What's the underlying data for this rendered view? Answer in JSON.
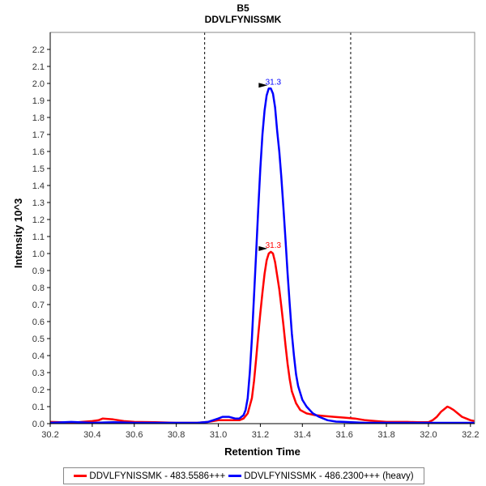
{
  "chart_data": {
    "type": "line",
    "title": "B5",
    "subtitle": "DDVLFYNISSMK",
    "xlabel": "Retention Time",
    "ylabel": "Intensity 10^3",
    "xlim": [
      30.2,
      32.22
    ],
    "ylim": [
      0,
      2.3
    ],
    "x_ticks": [
      "30.2",
      "30.4",
      "30.6",
      "30.8",
      "31.0",
      "31.2",
      "31.4",
      "31.6",
      "31.8",
      "32.0",
      "32.2"
    ],
    "y_ticks": [
      "0.0",
      "0.1",
      "0.2",
      "0.3",
      "0.4",
      "0.5",
      "0.6",
      "0.7",
      "0.8",
      "0.9",
      "1.0",
      "1.1",
      "1.2",
      "1.3",
      "1.4",
      "1.5",
      "1.6",
      "1.7",
      "1.8",
      "1.9",
      "2.0",
      "2.1",
      "2.2"
    ],
    "grid": false,
    "legend_position": "bottom",
    "boundaries": [
      30.935,
      31.63
    ],
    "series": [
      {
        "name": "DDVLFYNISSMK - 483.5586+++",
        "color": "#ff0000",
        "peak_label": "31.3",
        "peak": [
          31.246,
          1.01
        ],
        "points": [
          [
            30.2,
            0.01
          ],
          [
            30.25,
            0.008
          ],
          [
            30.3,
            0.005
          ],
          [
            30.35,
            0.01
          ],
          [
            30.4,
            0.015
          ],
          [
            30.43,
            0.02
          ],
          [
            30.45,
            0.03
          ],
          [
            30.5,
            0.025
          ],
          [
            30.55,
            0.015
          ],
          [
            30.6,
            0.01
          ],
          [
            30.7,
            0.008
          ],
          [
            30.8,
            0.005
          ],
          [
            30.9,
            0.005
          ],
          [
            30.95,
            0.01
          ],
          [
            31.0,
            0.02
          ],
          [
            31.05,
            0.02
          ],
          [
            31.1,
            0.02
          ],
          [
            31.12,
            0.03
          ],
          [
            31.14,
            0.06
          ],
          [
            31.16,
            0.15
          ],
          [
            31.17,
            0.25
          ],
          [
            31.18,
            0.38
          ],
          [
            31.19,
            0.52
          ],
          [
            31.2,
            0.65
          ],
          [
            31.21,
            0.77
          ],
          [
            31.22,
            0.88
          ],
          [
            31.23,
            0.96
          ],
          [
            31.24,
            1.0
          ],
          [
            31.25,
            1.01
          ],
          [
            31.26,
            1.0
          ],
          [
            31.27,
            0.95
          ],
          [
            31.28,
            0.87
          ],
          [
            31.29,
            0.79
          ],
          [
            31.3,
            0.69
          ],
          [
            31.31,
            0.58
          ],
          [
            31.32,
            0.46
          ],
          [
            31.33,
            0.35
          ],
          [
            31.34,
            0.26
          ],
          [
            31.35,
            0.19
          ],
          [
            31.37,
            0.12
          ],
          [
            31.39,
            0.08
          ],
          [
            31.42,
            0.06
          ],
          [
            31.46,
            0.05
          ],
          [
            31.5,
            0.045
          ],
          [
            31.55,
            0.04
          ],
          [
            31.6,
            0.035
          ],
          [
            31.65,
            0.03
          ],
          [
            31.7,
            0.02
          ],
          [
            31.75,
            0.015
          ],
          [
            31.8,
            0.01
          ],
          [
            31.85,
            0.01
          ],
          [
            31.9,
            0.01
          ],
          [
            31.95,
            0.008
          ],
          [
            32.0,
            0.008
          ],
          [
            32.02,
            0.02
          ],
          [
            32.04,
            0.04
          ],
          [
            32.06,
            0.07
          ],
          [
            32.08,
            0.09
          ],
          [
            32.09,
            0.1
          ],
          [
            32.1,
            0.095
          ],
          [
            32.12,
            0.08
          ],
          [
            32.14,
            0.06
          ],
          [
            32.16,
            0.04
          ],
          [
            32.18,
            0.03
          ],
          [
            32.2,
            0.02
          ],
          [
            32.22,
            0.015
          ]
        ]
      },
      {
        "name": "DDVLFYNISSMK - 486.2300+++ (heavy)",
        "color": "#0000ff",
        "peak_label": "31.3",
        "peak": [
          31.246,
          1.97
        ],
        "points": [
          [
            30.2,
            0.005
          ],
          [
            30.3,
            0.01
          ],
          [
            30.4,
            0.005
          ],
          [
            30.5,
            0.008
          ],
          [
            30.6,
            0.005
          ],
          [
            30.7,
            0.005
          ],
          [
            30.8,
            0.005
          ],
          [
            30.9,
            0.005
          ],
          [
            30.95,
            0.01
          ],
          [
            31.0,
            0.03
          ],
          [
            31.02,
            0.04
          ],
          [
            31.05,
            0.04
          ],
          [
            31.08,
            0.03
          ],
          [
            31.1,
            0.03
          ],
          [
            31.12,
            0.05
          ],
          [
            31.13,
            0.08
          ],
          [
            31.14,
            0.15
          ],
          [
            31.15,
            0.3
          ],
          [
            31.16,
            0.5
          ],
          [
            31.17,
            0.75
          ],
          [
            31.18,
            1.0
          ],
          [
            31.19,
            1.26
          ],
          [
            31.2,
            1.5
          ],
          [
            31.21,
            1.7
          ],
          [
            31.22,
            1.84
          ],
          [
            31.23,
            1.93
          ],
          [
            31.24,
            1.97
          ],
          [
            31.25,
            1.97
          ],
          [
            31.26,
            1.94
          ],
          [
            31.27,
            1.86
          ],
          [
            31.28,
            1.72
          ],
          [
            31.29,
            1.6
          ],
          [
            31.3,
            1.45
          ],
          [
            31.31,
            1.27
          ],
          [
            31.32,
            1.08
          ],
          [
            31.33,
            0.88
          ],
          [
            31.34,
            0.7
          ],
          [
            31.35,
            0.53
          ],
          [
            31.36,
            0.4
          ],
          [
            31.37,
            0.29
          ],
          [
            31.38,
            0.22
          ],
          [
            31.4,
            0.14
          ],
          [
            31.42,
            0.1
          ],
          [
            31.45,
            0.06
          ],
          [
            31.48,
            0.04
          ],
          [
            31.52,
            0.02
          ],
          [
            31.56,
            0.012
          ],
          [
            31.6,
            0.01
          ],
          [
            31.7,
            0.005
          ],
          [
            31.8,
            0.005
          ],
          [
            31.9,
            0.005
          ],
          [
            32.0,
            0.005
          ],
          [
            32.1,
            0.005
          ],
          [
            32.22,
            0.005
          ]
        ]
      }
    ]
  }
}
